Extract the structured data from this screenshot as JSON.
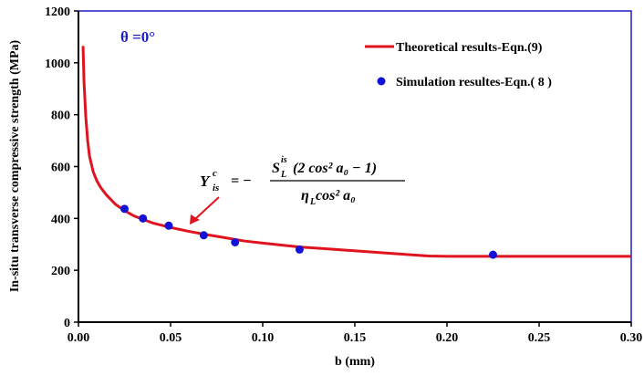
{
  "chart_data": {
    "type": "line",
    "title": "",
    "xlabel": "b (mm)",
    "ylabel": "In-situ transverse compressive strength (MPa)",
    "xlim": [
      0.0,
      0.3
    ],
    "ylim": [
      0,
      1200
    ],
    "x_ticks": [
      "0.00",
      "0.05",
      "0.10",
      "0.15",
      "0.20",
      "0.25",
      "0.30"
    ],
    "y_ticks": [
      "0",
      "200",
      "400",
      "600",
      "800",
      "1000",
      "1200"
    ],
    "grid": false,
    "legend_position": "top-right",
    "annotation_theta": "θ =0°",
    "equation": {
      "lhs_main": "Y",
      "lhs_sup": "c",
      "lhs_sub": "is",
      "minus": "= −",
      "num_s": "S",
      "num_sup": "is",
      "num_sub": "L",
      "num_rest": "(2 cos² a₀ − 1)",
      "den": "η",
      "den_sub": "L",
      "den_rest": " cos² a₀"
    },
    "series": [
      {
        "name": "Theoretical results-Eqn.(9)",
        "style": "line",
        "color": "#e0141e",
        "x": [
          0.0025,
          0.003,
          0.004,
          0.005,
          0.006,
          0.008,
          0.01,
          0.012,
          0.015,
          0.02,
          0.025,
          0.03,
          0.04,
          0.05,
          0.06,
          0.07,
          0.08,
          0.09,
          0.1,
          0.12,
          0.14,
          0.16,
          0.18,
          0.19,
          0.2,
          0.22,
          0.25,
          0.28,
          0.3
        ],
        "y": [
          1065,
          930,
          790,
          700,
          640,
          580,
          545,
          520,
          492,
          455,
          430,
          410,
          383,
          365,
          350,
          337,
          325,
          313,
          305,
          290,
          280,
          270,
          260,
          255,
          254,
          254,
          254,
          254,
          254
        ]
      },
      {
        "name": "Simulation resultes-Eqn.( 8 )",
        "style": "scatter",
        "color": "#1212d6",
        "x": [
          0.025,
          0.035,
          0.049,
          0.068,
          0.085,
          0.12,
          0.225
        ],
        "y": [
          437,
          400,
          372,
          335,
          308,
          280,
          260
        ]
      }
    ]
  }
}
